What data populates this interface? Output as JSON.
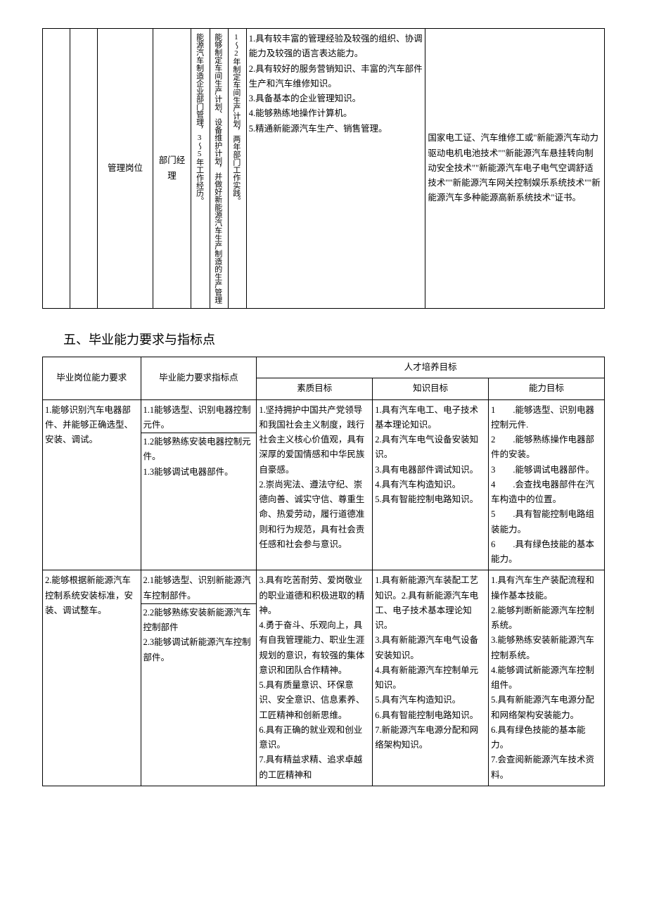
{
  "table1": {
    "row": {
      "col3": "管理岗位",
      "col4": "部门经理",
      "col5": "能源汽车制造企业部门管理，3～5年工作经历。",
      "col6": "能够制定车间生产计划、设备维护计划，并做好新能源汽车生产制造的生产管理",
      "col7": "1～2年制定车间生产计划，两年部门工作实践。",
      "col8": "1.具有较丰富的管理经验及较强的组织、协调能力及较强的语言表达能力。\n2.具有较好的服务营销知识、丰富的汽车部件生产和汽车维修知识。\n3.具备基本的企业管理知识。\n4.能够熟练地操作计算机。\n5.精通新能源汽车生产、销售管理。",
      "col9": "国家电工证、汽车维修工或\"新能源汽车动力驱动电机电池技术\"\"新能源汽车悬挂转向制动安全技术\"\"新能源汽车电子电气空调舒适技术\"\"新能源汽车网关控制娱乐系统技术\"\"新能源汽车多种能源高新系统技术\"证书。"
    }
  },
  "section2_title": "五、毕业能力要求与指标点",
  "table2": {
    "header": {
      "col1": "毕业岗位能力要求",
      "col2": "毕业能力要求指标点",
      "merged": "人才培养目标",
      "col3": "素质目标",
      "col4": "知识目标",
      "col5": "能力目标"
    },
    "rows": [
      {
        "c1": "1.能够识别汽车电器部件、并能够正确选型、安装、调试。",
        "c2a": "1.1能够选型、识别电器控制元件。",
        "c2b": "1.2能够熟练安装电器控制元件。\n1.3能够调试电器部件。",
        "c3": "1.坚持拥护中国共产党领导和我国社会主义制度，践行社会主义核心价值观，具有深厚的爱国情感和中华民族自豪感。\n2.崇尚宪法、遵法守纪、崇德向善、诚实守信、尊重生命、热爱劳动，履行道德准则和行为规范，具有社会责任感和社会参与意识。",
        "c4": "1.具有汽车电工、电子技术基本理论知识。\n2.具有汽车电气设备安装知识。\n3.具有电器部件调试知识。\n4.具有汽车构造知识。\n5.具有智能控制电路知识。",
        "c5": "1　　.能够选型、识别电器控制元件.\n2　　.能够熟练操作电器部件的安装。\n3　　.能够调试电器部件。\n4　　.会查找电器部件在汽车构造中的位置。\n5　　.具有智能控制电路组装能力。\n6　　.具有绿色技能的基本能力。"
      },
      {
        "c1": "2.能够根据新能源汽车控制系统安装标准，安装、调试整车。",
        "c2a": "2.1能够选型、识别新能源汽车控制部件。",
        "c2b": "2.2能够熟练安装新能源汽车控制部件\n2.3能够调试新能源汽车控制部件。",
        "c3": "3.具有吃苦耐劳、爱岗敬业的职业道德和积极进取的精神。\n4.勇于奋斗、乐观向上，具有自我管理能力、职业生涯规划的意识，有较强的集体意识和团队合作精神。\n5.具有质量意识、环保意识、安全意识、信息素养、工匠精神和创新思维。\n6.具有正确的就业观和创业意识。\n7.具有精益求精、追求卓越的工匠精神和",
        "c4": "1.具有新能源汽车装配工艺知识。2.具有新能源汽车电工、电子技术基本理论知识。\n3.具有新能源汽车电气设备安装知识。\n4.具有新能源汽车控制单元知识。\n5.具有汽车构造知识。\n6.具有智能控制电路知识。\n7.新能源汽车电源分配和网络架构知识。",
        "c5": "1.具有汽车生产装配流程和操作基本技能。\n2.能够判断新能源汽车控制系统。\n3.能够熟练安装新能源汽车控制系统。\n4.能够调试新能源汽车控制组件。\n5.具有新能源汽车电源分配和网络架构安装能力。\n6.具有绿色技能的基本能力。\n7.会查阅新能源汽车技术资料。"
      }
    ]
  }
}
